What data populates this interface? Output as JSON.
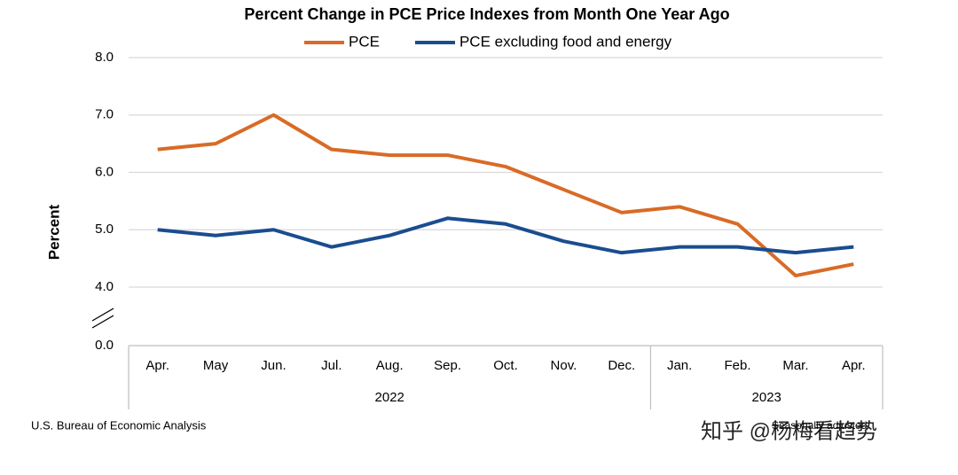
{
  "chart_data": {
    "type": "line",
    "title": "Percent Change in PCE Price Indexes from Month One Year Ago",
    "y_label": "Percent",
    "categories": [
      "Apr.",
      "May",
      "Jun.",
      "Jul.",
      "Aug.",
      "Sep.",
      "Oct.",
      "Nov.",
      "Dec.",
      "Jan.",
      "Feb.",
      "Mar.",
      "Apr."
    ],
    "x_groups": [
      "2022",
      null,
      null,
      null,
      null,
      null,
      null,
      null,
      null,
      "2023",
      null,
      null,
      null
    ],
    "series": [
      {
        "name": "PCE",
        "color": "#d86b27",
        "values": [
          6.4,
          6.5,
          7.0,
          6.4,
          6.3,
          6.3,
          6.1,
          5.7,
          5.3,
          5.4,
          5.1,
          4.2,
          4.4
        ]
      },
      {
        "name": "PCE excluding food and energy",
        "color": "#1a4d8f",
        "values": [
          5.0,
          4.9,
          5.0,
          4.7,
          4.9,
          5.2,
          5.1,
          4.8,
          4.6,
          4.7,
          4.7,
          4.6,
          4.7
        ]
      }
    ],
    "ylim": [
      0,
      8
    ],
    "yticks": [
      {
        "value": 0,
        "label": "0.0"
      },
      {
        "value": 4,
        "label": "4.0"
      },
      {
        "value": 5,
        "label": "5.0"
      },
      {
        "value": 6,
        "label": "6.0"
      },
      {
        "value": 7,
        "label": "7.0"
      },
      {
        "value": 8,
        "label": "8.0"
      }
    ],
    "grid": true,
    "legend": "top",
    "source": "U.S. Bureau of Economic Analysis",
    "note": "Seasonally adjusted",
    "watermark": "知乎 @杨梅看趋势"
  }
}
